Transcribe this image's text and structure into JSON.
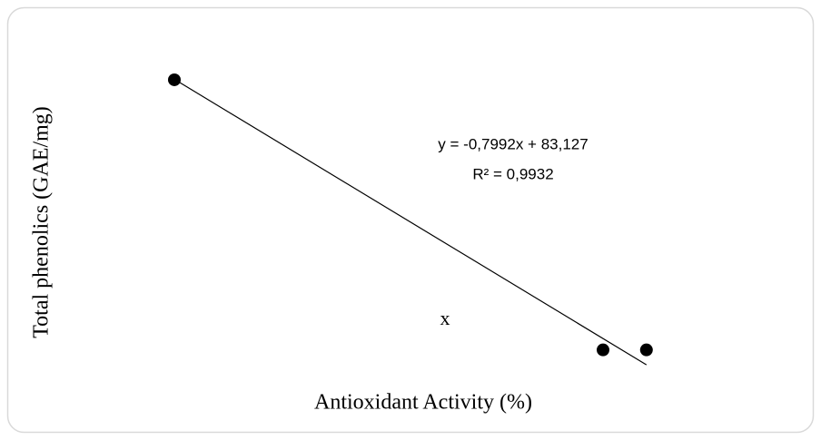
{
  "chart_data": {
    "type": "scatter",
    "x_label": "Antioxidant Activity (%)",
    "y_label": "Total phenolics (GAE/mg)",
    "x": [
      5,
      85,
      93.1
    ],
    "values": [
      79,
      12.4,
      12.4
    ],
    "color": "#000000",
    "xlim": [
      0,
      100
    ],
    "ylim": [
      0,
      90
    ],
    "trendline": {
      "slope": -0.7992,
      "intercept": 83.127,
      "color": "#000000",
      "equation": "y = -0,7992x + 83,127",
      "r_squared": "R² = 0,9932"
    },
    "annotations": [
      "x"
    ]
  }
}
